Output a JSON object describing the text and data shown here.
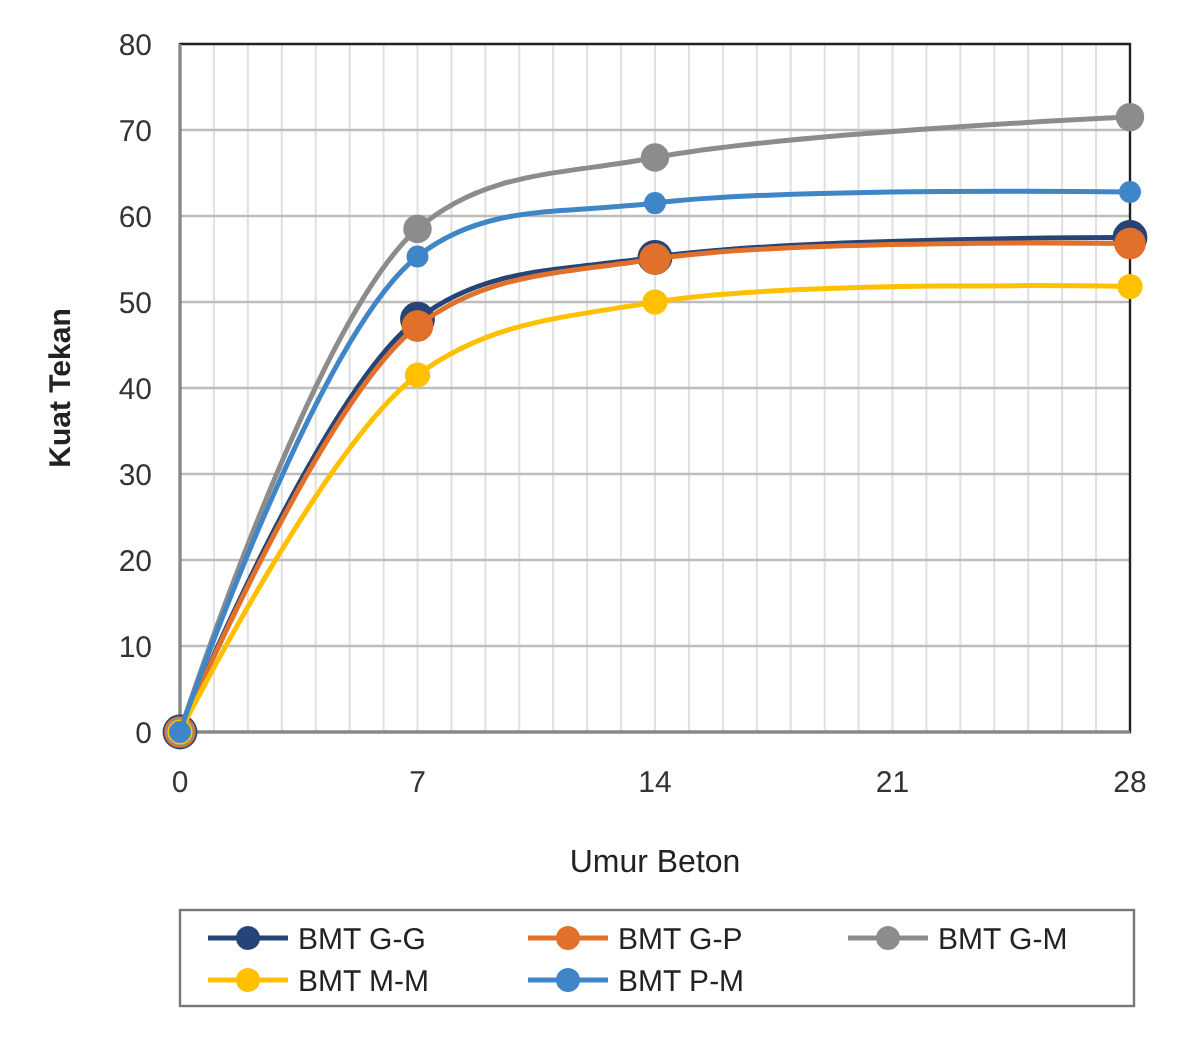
{
  "chart_data": {
    "type": "line",
    "xlabel": "Umur Beton",
    "ylabel": "Kuat Tekan",
    "x": [
      0,
      7,
      14,
      28
    ],
    "xlim": [
      0,
      28
    ],
    "xticks": [
      0,
      7,
      14,
      21,
      28
    ],
    "ylim": [
      0,
      80
    ],
    "yticks": [
      0,
      10,
      20,
      30,
      40,
      50,
      60,
      70,
      80
    ],
    "grid": true,
    "legend": "bottom",
    "marker": "circle",
    "line_style": "solid",
    "series": [
      {
        "name": "BMT G-G",
        "color": "#264478",
        "values": [
          0,
          48,
          55.2,
          57.5
        ]
      },
      {
        "name": "BMT G-P",
        "color": "#e0702a",
        "values": [
          0,
          47.2,
          55,
          56.8
        ]
      },
      {
        "name": "BMT G-M",
        "color": "#8c8c8c",
        "values": [
          0,
          58.5,
          66.8,
          71.5
        ]
      },
      {
        "name": "BMT M-M",
        "color": "#ffc000",
        "values": [
          0,
          41.5,
          50,
          51.8
        ]
      },
      {
        "name": "BMT P-M",
        "color": "#3f86c8",
        "values": [
          0,
          55.3,
          61.5,
          62.8
        ]
      }
    ]
  }
}
